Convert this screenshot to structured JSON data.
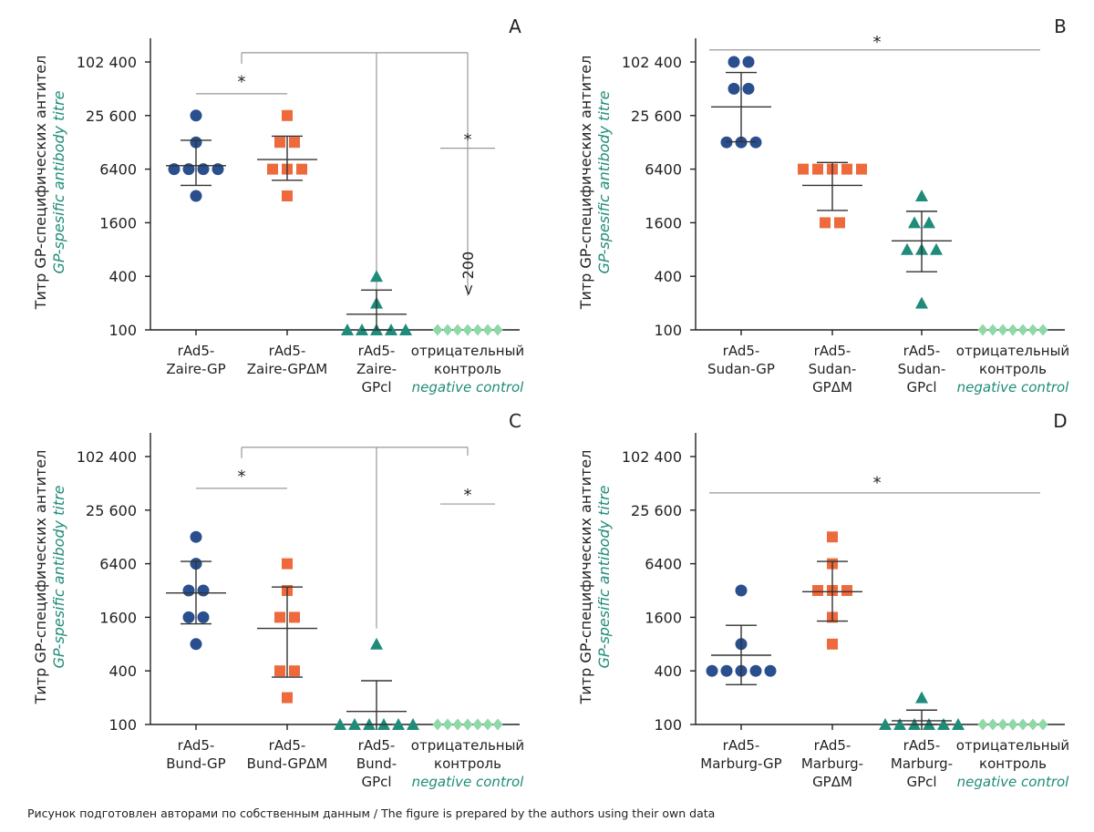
{
  "figure": {
    "caption": "Рисунок подготовлен авторами по собственным данным / The figure is prepared by the authors using their own data",
    "ylabel_ru": "Титр GP-специфических антител",
    "ylabel_en": "GP-spesific antibody titre",
    "colors": {
      "dark_blue": "#2a4f8e",
      "orange": "#ee6a3c",
      "teal": "#1f8c7a",
      "light_green": "#8fd8a8",
      "text_accent": "#1f8c7a",
      "axis": "#222222",
      "sig_line": "#999999"
    },
    "icons": {
      "group1": "circle-marker",
      "group2": "square-marker",
      "group3": "triangle-marker",
      "group4": "diamond-marker"
    }
  },
  "chart_data": [
    {
      "panel": "A",
      "type": "scatter",
      "scale": "log2",
      "yticks": [
        100,
        400,
        1600,
        6400,
        25600,
        102400
      ],
      "ytick_labels": [
        "100",
        "400",
        "1600",
        "6400",
        "25 600",
        "102 400"
      ],
      "ylim": [
        100,
        180000
      ],
      "groups": [
        {
          "label": [
            "rAd5-",
            "Zaire-GP"
          ],
          "label_italic": "",
          "marker": "circle",
          "color": "#2a4f8e",
          "values": [
            25600,
            12800,
            6400,
            6400,
            6400,
            6400,
            3200
          ],
          "mean": 7000,
          "sd_low": 4200,
          "sd_high": 13500
        },
        {
          "label": [
            "rAd5-",
            "Zaire-GPΔM"
          ],
          "label_italic": "",
          "marker": "square",
          "color": "#ee6a3c",
          "values": [
            25600,
            12800,
            12800,
            6400,
            6400,
            6400,
            3200
          ],
          "mean": 8200,
          "sd_low": 4800,
          "sd_high": 15000
        },
        {
          "label": [
            "rAd5-",
            "Zaire-",
            "GPcl"
          ],
          "label_italic": "",
          "marker": "triangle",
          "color": "#1f8c7a",
          "values": [
            400,
            200,
            100,
            100,
            100,
            100,
            100
          ],
          "mean": 150,
          "sd_low": 100,
          "sd_high": 280
        },
        {
          "label": [
            "отрицательный",
            "контроль"
          ],
          "label_italic": "negative control",
          "marker": "diamond",
          "color": "#8fd8a8",
          "values": [
            100,
            100,
            100,
            100,
            100,
            100,
            100
          ],
          "mean": null,
          "sd_low": null,
          "sd_high": null
        }
      ],
      "annotations": [
        {
          "text": "< 200",
          "group": 3,
          "value": 240,
          "rotate": true
        }
      ],
      "significance": {
        "lines": [
          {
            "from": 0,
            "to": 1,
            "value": 45000,
            "style": "plain"
          },
          {
            "from": 3,
            "to": 3,
            "value": 11000,
            "style": "plain",
            "half_width": 0.3
          }
        ],
        "bracket": {
          "anchor": 0.5,
          "stems": [
            2,
            3
          ],
          "top": 130000,
          "stem_bottoms": [
            220,
            240
          ]
        },
        "stars": [
          {
            "x": 0.5,
            "value": 65000,
            "text": "*"
          },
          {
            "x": 3,
            "value": 14500,
            "text": "*"
          }
        ]
      }
    },
    {
      "panel": "B",
      "type": "scatter",
      "scale": "log2",
      "yticks": [
        100,
        400,
        1600,
        6400,
        25600,
        102400
      ],
      "ytick_labels": [
        "100",
        "400",
        "1600",
        "6400",
        "25 600",
        "102 400"
      ],
      "ylim": [
        100,
        180000
      ],
      "groups": [
        {
          "label": [
            "rAd5-",
            "Sudan-GP"
          ],
          "label_italic": "",
          "marker": "circle",
          "color": "#2a4f8e",
          "values": [
            102400,
            102400,
            51200,
            51200,
            12800,
            12800,
            12800
          ],
          "mean": 32000,
          "sd_low": 13000,
          "sd_high": 78000
        },
        {
          "label": [
            "rAd5-",
            "Sudan-",
            "GPΔM"
          ],
          "label_italic": "",
          "marker": "square",
          "color": "#ee6a3c",
          "values": [
            6400,
            6400,
            6400,
            6400,
            6400,
            1600,
            1600
          ],
          "mean": 4200,
          "sd_low": 2200,
          "sd_high": 7600
        },
        {
          "label": [
            "rAd5-",
            "Sudan-",
            "GPcl"
          ],
          "label_italic": "",
          "marker": "triangle",
          "color": "#1f8c7a",
          "values": [
            3200,
            1600,
            1600,
            800,
            800,
            800,
            200
          ],
          "mean": 1000,
          "sd_low": 450,
          "sd_high": 2150
        },
        {
          "label": [
            "отрицательный",
            "контроль"
          ],
          "label_italic": "negative control",
          "marker": "diamond",
          "color": "#8fd8a8",
          "values": [
            100,
            100,
            100,
            100,
            100,
            100,
            100
          ],
          "mean": null,
          "sd_low": null,
          "sd_high": null
        }
      ],
      "annotations": [],
      "significance": {
        "lines": [
          {
            "from": 0,
            "to": 3,
            "value": 140000,
            "style": "plain",
            "extend": 0.3
          }
        ],
        "bracket": null,
        "stars": [
          {
            "x": 1.5,
            "value": 180000,
            "text": "*"
          }
        ]
      }
    },
    {
      "panel": "C",
      "type": "scatter",
      "scale": "log2",
      "yticks": [
        100,
        400,
        1600,
        6400,
        25600,
        102400
      ],
      "ytick_labels": [
        "100",
        "400",
        "1600",
        "6400",
        "25 600",
        "102 400"
      ],
      "ylim": [
        100,
        180000
      ],
      "groups": [
        {
          "label": [
            "rAd5-",
            "Bund-GP"
          ],
          "label_italic": "",
          "marker": "circle",
          "color": "#2a4f8e",
          "values": [
            12800,
            6400,
            3200,
            3200,
            1600,
            1600,
            800
          ],
          "mean": 3000,
          "sd_low": 1350,
          "sd_high": 6800
        },
        {
          "label": [
            "rAd5-",
            "Bund-GPΔM"
          ],
          "label_italic": "",
          "marker": "square",
          "color": "#ee6a3c",
          "values": [
            6400,
            3200,
            1600,
            1600,
            400,
            400,
            200
          ],
          "mean": 1200,
          "sd_low": 340,
          "sd_high": 3500
        },
        {
          "label": [
            "rAd5-",
            "Bund-",
            "GPcl"
          ],
          "label_italic": "",
          "marker": "triangle",
          "color": "#1f8c7a",
          "values": [
            800,
            100,
            100,
            100,
            100,
            100,
            100
          ],
          "mean": 140,
          "sd_low": 100,
          "sd_high": 310
        },
        {
          "label": [
            "отрицательный",
            "контроль"
          ],
          "label_italic": "negative control",
          "marker": "diamond",
          "color": "#8fd8a8",
          "values": [
            100,
            100,
            100,
            100,
            100,
            100,
            100
          ],
          "mean": null,
          "sd_low": null,
          "sd_high": null
        }
      ],
      "annotations": [],
      "significance": {
        "lines": [
          {
            "from": 0,
            "to": 1,
            "value": 45000,
            "style": "plain"
          },
          {
            "from": 3,
            "to": 3,
            "value": 30000,
            "style": "plain",
            "half_width": 0.3
          }
        ],
        "bracket": {
          "anchor": 0.5,
          "stems": [
            2,
            3
          ],
          "top": 130000,
          "stem_bottoms": [
            1200,
            105000
          ]
        },
        "stars": [
          {
            "x": 0.5,
            "value": 65000,
            "text": "*"
          },
          {
            "x": 3,
            "value": 40000,
            "text": "*"
          }
        ]
      }
    },
    {
      "panel": "D",
      "type": "scatter",
      "scale": "log2",
      "yticks": [
        100,
        400,
        1600,
        6400,
        25600,
        102400
      ],
      "ytick_labels": [
        "100",
        "400",
        "1600",
        "6400",
        "25 600",
        "102 400"
      ],
      "ylim": [
        100,
        180000
      ],
      "groups": [
        {
          "label": [
            "rAd5-",
            "Marburg-GP"
          ],
          "label_italic": "",
          "marker": "circle",
          "color": "#2a4f8e",
          "values": [
            3200,
            800,
            400,
            400,
            400,
            400,
            400
          ],
          "mean": 600,
          "sd_low": 280,
          "sd_high": 1300
        },
        {
          "label": [
            "rAd5-",
            "Marburg-",
            "GPΔM"
          ],
          "label_italic": "",
          "marker": "square",
          "color": "#ee6a3c",
          "values": [
            12800,
            6400,
            3200,
            3200,
            3200,
            1600,
            800
          ],
          "mean": 3100,
          "sd_low": 1450,
          "sd_high": 6800
        },
        {
          "label": [
            "rAd5-",
            "Marburg-",
            "GPcl"
          ],
          "label_italic": "",
          "marker": "triangle",
          "color": "#1f8c7a",
          "values": [
            200,
            100,
            100,
            100,
            100,
            100,
            100
          ],
          "mean": 110,
          "sd_low": 100,
          "sd_high": 145
        },
        {
          "label": [
            "отрицательный",
            "контроль"
          ],
          "label_italic": "negative control",
          "marker": "diamond",
          "color": "#8fd8a8",
          "values": [
            100,
            100,
            100,
            100,
            100,
            100,
            100
          ],
          "mean": null,
          "sd_low": null,
          "sd_high": null
        }
      ],
      "annotations": [],
      "significance": {
        "lines": [
          {
            "from": 0,
            "to": 3,
            "value": 40000,
            "style": "plain",
            "extend": 0.3
          }
        ],
        "bracket": null,
        "stars": [
          {
            "x": 1.5,
            "value": 55000,
            "text": "*"
          }
        ]
      }
    }
  ]
}
